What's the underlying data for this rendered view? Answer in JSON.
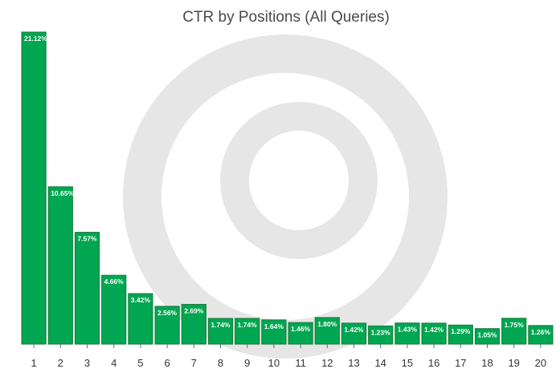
{
  "chart_data": {
    "type": "bar",
    "title": "CTR by Positions (All Queries)",
    "xlabel": "",
    "ylabel": "",
    "categories": [
      "1",
      "2",
      "3",
      "4",
      "5",
      "6",
      "7",
      "8",
      "9",
      "10",
      "11",
      "12",
      "13",
      "14",
      "15",
      "16",
      "17",
      "18",
      "19",
      "20"
    ],
    "values": [
      21.12,
      10.65,
      7.57,
      4.66,
      3.42,
      2.56,
      2.69,
      1.74,
      1.74,
      1.64,
      1.46,
      1.8,
      1.42,
      1.23,
      1.43,
      1.42,
      1.29,
      1.05,
      1.75,
      1.26
    ],
    "data_labels": [
      "21.12%",
      "10.65%",
      "7.57%",
      "4.66%",
      "3.42%",
      "2.56%",
      "2.69%",
      "1.74%",
      "1.74%",
      "1.64%",
      "1.46%",
      "1.80%",
      "1.42%",
      "1.23%",
      "1.43%",
      "1.42%",
      "1.29%",
      "1.05%",
      "1.75%",
      "1.26%"
    ],
    "ylim": [
      0,
      21.12
    ],
    "grid": false,
    "legend": "none",
    "colors": {
      "bar": "#00a651",
      "bar_border": "#1a7a3a",
      "watermark": "#e6e6e6",
      "title": "#4a4a4a"
    }
  }
}
